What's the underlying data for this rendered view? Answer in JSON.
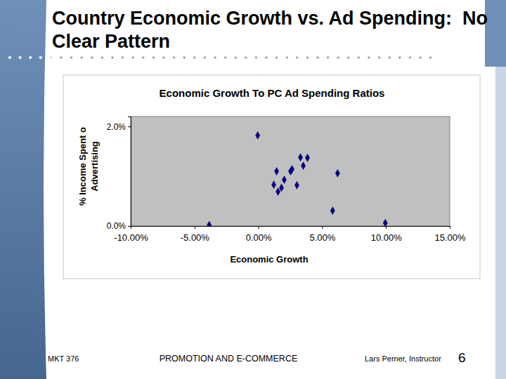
{
  "slide": {
    "title": [
      "Country Economic Growth vs. Ad Spending:  No",
      "Clear Pattern"
    ],
    "footer": {
      "course": "MKT 376",
      "subject": "PROMOTION AND E-COMMERCE",
      "instructor": "Lars Perner, Instructor",
      "page": 6
    }
  },
  "chart_data": {
    "type": "scatter",
    "title": "Economic Growth To PC Ad Spending Ratios",
    "xlabel": "Economic Growth",
    "ylabel": [
      "% Income Spent o",
      "Advertising"
    ],
    "x": [
      -3.85,
      -0.05,
      1.43,
      1.21,
      1.54,
      1.81,
      2.03,
      2.64,
      2.53,
      3.02,
      3.3,
      3.52,
      3.85,
      6.21,
      5.82,
      9.95
    ],
    "values": [
      0.02,
      1.82,
      1.1,
      0.83,
      0.69,
      0.77,
      0.93,
      1.14,
      1.1,
      0.82,
      1.38,
      1.21,
      1.37,
      1.06,
      0.31,
      0.06
    ],
    "color": "#000080",
    "marker": "diamond",
    "xlim": [
      -10,
      15
    ],
    "xticks": [
      {
        "value": -10,
        "label": "-10.00%"
      },
      {
        "value": -5,
        "label": "-5.00%"
      },
      {
        "value": 0,
        "label": "0.00%"
      },
      {
        "value": 5,
        "label": "5.00%"
      },
      {
        "value": 10,
        "label": "10.00%"
      },
      {
        "value": 15,
        "label": "15.00%"
      }
    ],
    "ylim": [
      0,
      2.2
    ],
    "yticks": [
      {
        "value": 0,
        "label": "0.0%"
      },
      {
        "value": 2,
        "label": "2.0%"
      }
    ],
    "grid": false
  }
}
